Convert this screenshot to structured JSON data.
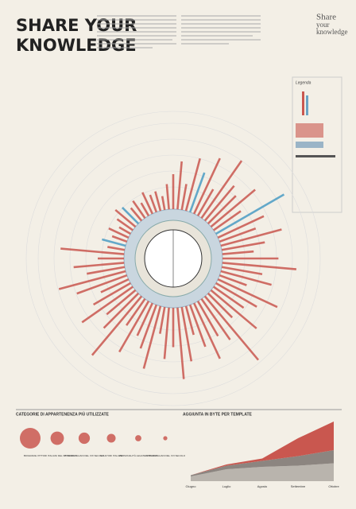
{
  "header": {
    "title_line1": "SHARE YOUR",
    "title_line2": "KNOWLEDGE",
    "logo_line1": "Share",
    "logo_line2": "your",
    "logo_line3": "knowledge"
  },
  "legend": {
    "title": "Legenda"
  },
  "radial": {
    "max": 100,
    "values": [
      40,
      55,
      30,
      62,
      48,
      70,
      35,
      80,
      52,
      45,
      66,
      38,
      90,
      58,
      44,
      72,
      50,
      36,
      64,
      85,
      47,
      60,
      33,
      75,
      54,
      42,
      68,
      39,
      95,
      57,
      46,
      70,
      51,
      34,
      63,
      82,
      45,
      59,
      31,
      74,
      53,
      41,
      67,
      37,
      88,
      56,
      43,
      71,
      49,
      35,
      61,
      79,
      44,
      58,
      30,
      73,
      20,
      28,
      18,
      25,
      15,
      22,
      30,
      26,
      19,
      24,
      17,
      27,
      21,
      23,
      16,
      29
    ],
    "accent": [
      4,
      12,
      57,
      63
    ]
  },
  "bubbles": {
    "title": "CATEGORIE DI APPARTENENZA PIÙ UTILIZZATE",
    "max": 100,
    "items": [
      {
        "label": "BIOGRAFIE",
        "value": 100
      },
      {
        "label": "PITTORI ITALIANI DEL XX SECOLO",
        "value": 42
      },
      {
        "label": "PITTORI ITALIANI DEL XIX SECOLO",
        "value": 30
      },
      {
        "label": "SCULTORI ITALIANI",
        "value": 18
      },
      {
        "label": "PERSONALITÀ LEGATE A MILANO",
        "value": 9
      },
      {
        "label": "PITTORI ITALIANI DEL XVI SECOLO",
        "value": 4
      }
    ]
  },
  "area": {
    "title": "AGGIUNTA IN BYTE PER TEMPLATE",
    "categories": [
      "Giugno",
      "Luglio",
      "Agosto",
      "Settembre",
      "Ottobre"
    ],
    "ylim": [
      0,
      100
    ],
    "series": [
      {
        "color": "#b9b4ad",
        "values": [
          8,
          20,
          24,
          26,
          30
        ]
      },
      {
        "color": "#8c8580",
        "values": [
          2,
          6,
          10,
          16,
          22
        ]
      },
      {
        "color": "#c9574f",
        "values": [
          0,
          2,
          4,
          30,
          48
        ]
      }
    ]
  }
}
